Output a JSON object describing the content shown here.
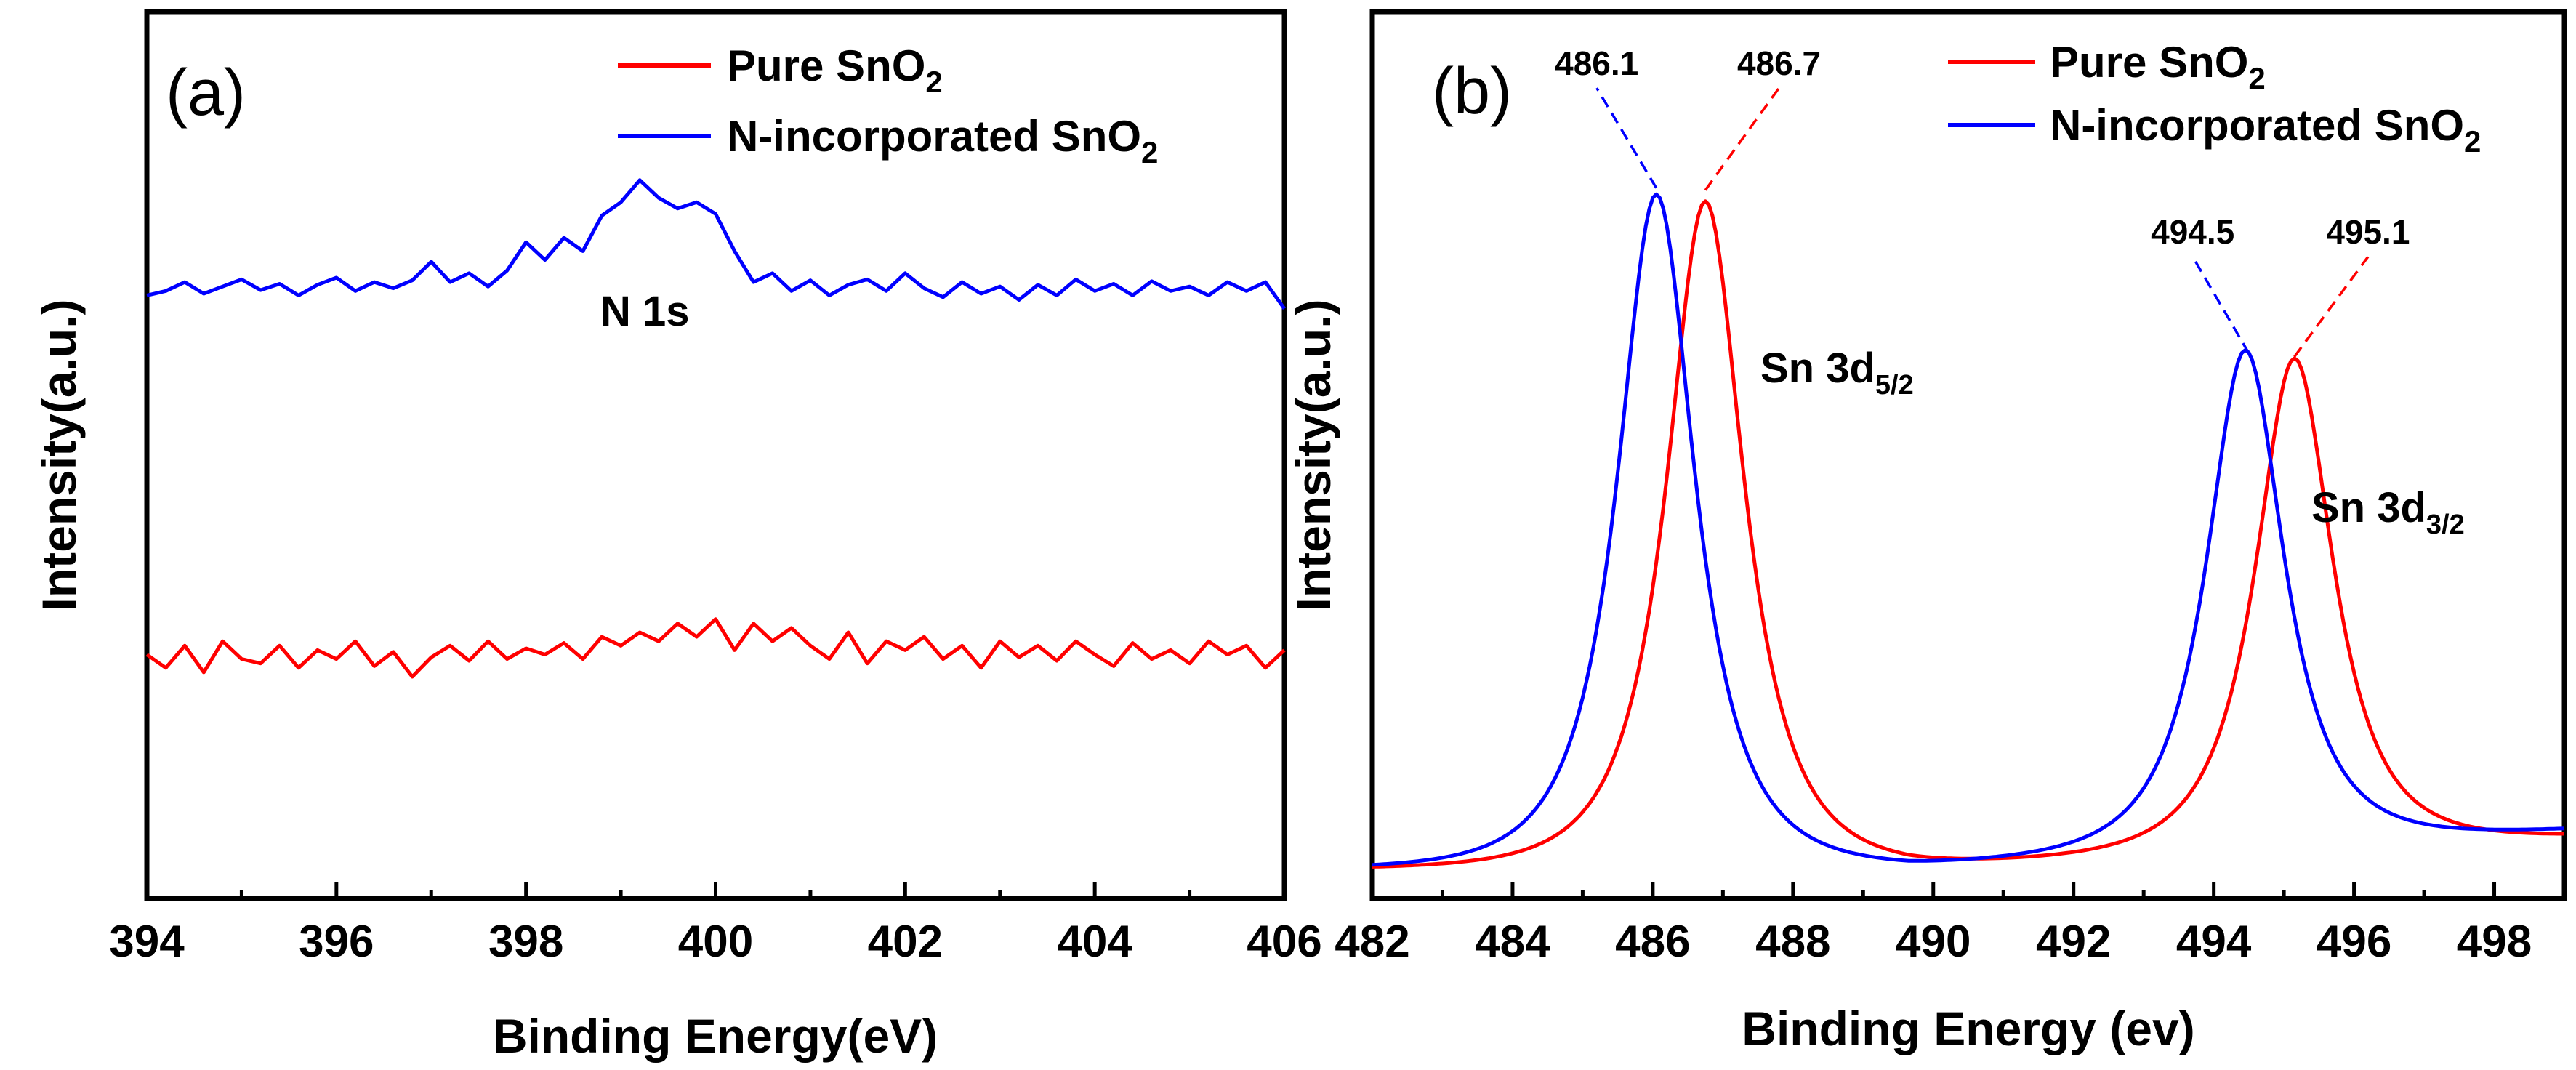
{
  "colors": {
    "pure": "#ff0000",
    "n_incorporated": "#0000ff",
    "axis": "#000000"
  },
  "chart_data": [
    {
      "type": "line",
      "panel": "(a)",
      "xlabel": "Binding Energy(eV)",
      "ylabel": "Intensity(a.u.)",
      "xlim": [
        394,
        406
      ],
      "ylim": [
        0,
        10
      ],
      "xticks": [
        "394",
        "396",
        "398",
        "400",
        "402",
        "404",
        "406"
      ],
      "legend": {
        "position": "top-right",
        "entries": [
          {
            "name": "Pure SnO",
            "sub": "2",
            "color": "#ff0000"
          },
          {
            "name": "N-incorporated SnO",
            "sub": "2",
            "color": "#0000ff"
          }
        ]
      },
      "annotation": {
        "text": "N 1s",
        "x": 399.0,
        "y": 8.7
      },
      "series": [
        {
          "name": "N-incorporated SnO2",
          "color": "#0000ff",
          "x": [
            394.0,
            394.2,
            394.4,
            394.6,
            394.8,
            395.0,
            395.2,
            395.4,
            395.6,
            395.8,
            396.0,
            396.2,
            396.4,
            396.6,
            396.8,
            397.0,
            397.2,
            397.4,
            397.6,
            397.8,
            398.0,
            398.2,
            398.4,
            398.6,
            398.8,
            399.0,
            399.2,
            399.4,
            399.6,
            399.8,
            400.0,
            400.2,
            400.4,
            400.6,
            400.8,
            401.0,
            401.2,
            401.4,
            401.6,
            401.8,
            402.0,
            402.2,
            402.4,
            402.6,
            402.8,
            403.0,
            403.2,
            403.4,
            403.6,
            403.8,
            404.0,
            404.2,
            404.4,
            404.6,
            404.8,
            405.0,
            405.2,
            405.4,
            405.6,
            405.8,
            406.0
          ],
          "y": [
            6.8,
            6.85,
            6.95,
            6.82,
            6.9,
            6.98,
            6.86,
            6.93,
            6.8,
            6.92,
            7.0,
            6.85,
            6.95,
            6.88,
            6.97,
            7.18,
            6.95,
            7.05,
            6.9,
            7.08,
            7.4,
            7.2,
            7.45,
            7.3,
            7.7,
            7.85,
            8.1,
            7.9,
            7.78,
            7.85,
            7.72,
            7.3,
            6.95,
            7.05,
            6.85,
            6.97,
            6.8,
            6.92,
            6.98,
            6.85,
            7.05,
            6.88,
            6.78,
            6.95,
            6.82,
            6.9,
            6.75,
            6.92,
            6.8,
            6.98,
            6.85,
            6.93,
            6.8,
            6.96,
            6.85,
            6.9,
            6.8,
            6.95,
            6.85,
            6.95,
            6.65
          ]
        },
        {
          "name": "Pure SnO2",
          "color": "#ff0000",
          "x": [
            394.0,
            394.2,
            394.4,
            394.6,
            394.8,
            395.0,
            395.2,
            395.4,
            395.6,
            395.8,
            396.0,
            396.2,
            396.4,
            396.6,
            396.8,
            397.0,
            397.2,
            397.4,
            397.6,
            397.8,
            398.0,
            398.2,
            398.4,
            398.6,
            398.8,
            399.0,
            399.2,
            399.4,
            399.6,
            399.8,
            400.0,
            400.2,
            400.4,
            400.6,
            400.8,
            401.0,
            401.2,
            401.4,
            401.6,
            401.8,
            402.0,
            402.2,
            402.4,
            402.6,
            402.8,
            403.0,
            403.2,
            403.4,
            403.6,
            403.8,
            404.0,
            404.2,
            404.4,
            404.6,
            404.8,
            405.0,
            405.2,
            405.4,
            405.6,
            405.8,
            406.0
          ],
          "y": [
            2.75,
            2.6,
            2.85,
            2.55,
            2.9,
            2.7,
            2.65,
            2.85,
            2.6,
            2.8,
            2.7,
            2.9,
            2.62,
            2.78,
            2.5,
            2.72,
            2.85,
            2.68,
            2.9,
            2.7,
            2.82,
            2.75,
            2.88,
            2.7,
            2.95,
            2.85,
            3.0,
            2.9,
            3.1,
            2.95,
            3.15,
            2.8,
            3.1,
            2.9,
            3.05,
            2.85,
            2.7,
            3.0,
            2.65,
            2.9,
            2.8,
            2.95,
            2.7,
            2.85,
            2.6,
            2.9,
            2.72,
            2.85,
            2.68,
            2.9,
            2.75,
            2.62,
            2.88,
            2.7,
            2.8,
            2.65,
            2.9,
            2.75,
            2.85,
            2.6,
            2.8
          ]
        }
      ]
    },
    {
      "type": "line",
      "panel": "(b)",
      "xlabel": "Binding Energy (ev)",
      "ylabel": "Intensity(a.u.)",
      "xlim": [
        482,
        499
      ],
      "ylim": [
        0,
        10
      ],
      "xticks": [
        "482",
        "484",
        "486",
        "488",
        "490",
        "492",
        "494",
        "496",
        "498"
      ],
      "legend": {
        "position": "top-right",
        "entries": [
          {
            "name": "Pure SnO",
            "sub": "2",
            "color": "#ff0000"
          },
          {
            "name": "N-incorporated SnO",
            "sub": "2",
            "color": "#0000ff"
          }
        ]
      },
      "annotations": [
        {
          "text": "Sn 3d",
          "sub": "5/2",
          "x": 487.3,
          "y": 8.8
        },
        {
          "text": "Sn 3d",
          "sub": "3/2",
          "x": 495.8,
          "y": 6.2
        }
      ],
      "peak_labels": [
        {
          "text": "486.1",
          "peak_x": 486.05,
          "peak_y": 9.65,
          "label_x": 485.2,
          "label_y": 11.3,
          "series": "N-incorporated SnO2"
        },
        {
          "text": "486.7",
          "peak_x": 486.75,
          "peak_y": 9.62,
          "label_x": 487.8,
          "label_y": 11.3,
          "series": "Pure SnO2"
        },
        {
          "text": "494.5",
          "peak_x": 494.5,
          "peak_y": 7.3,
          "label_x": 493.7,
          "label_y": 8.9,
          "series": "N-incorporated SnO2"
        },
        {
          "text": "495.1",
          "peak_x": 495.15,
          "peak_y": 7.25,
          "label_x": 496.2,
          "label_y": 8.9,
          "series": "Pure SnO2"
        }
      ],
      "series": [
        {
          "name": "Pure SnO2",
          "color": "#ff0000",
          "baseline_start": 0.0,
          "baseline_end": 0.45,
          "peaks": [
            {
              "center": 486.75,
              "height": 9.5,
              "fwhm": 1.35
            },
            {
              "center": 495.15,
              "height": 7.0,
              "fwhm": 1.35
            }
          ]
        },
        {
          "name": "N-incorporated SnO2",
          "color": "#0000ff",
          "baseline_start": 0.0,
          "baseline_end": 0.55,
          "peaks": [
            {
              "center": 486.05,
              "height": 9.6,
              "fwhm": 1.35
            },
            {
              "center": 494.45,
              "height": 7.1,
              "fwhm": 1.35
            }
          ]
        }
      ]
    }
  ]
}
